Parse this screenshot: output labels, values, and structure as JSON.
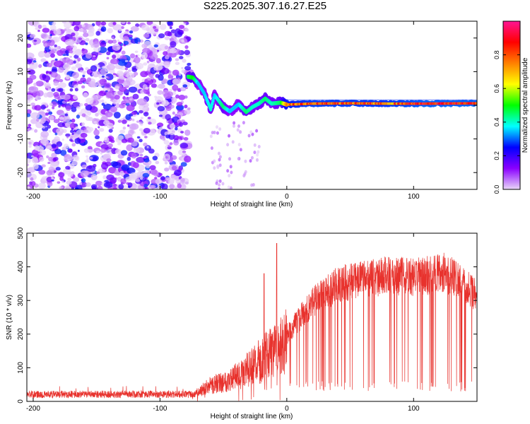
{
  "title": "S225.2025.307.16.27.E25",
  "colors": {
    "snr_line": "#e8322d",
    "axis": "#000000"
  },
  "chart_data": [
    {
      "type": "heatmap",
      "name": "spectrogram",
      "xlabel": "Height of straight line (km)",
      "ylabel": "Frequency (Hz)",
      "xlim": [
        -205,
        150
      ],
      "ylim": [
        -25,
        25
      ],
      "xticks": [
        -200,
        -100,
        0,
        100
      ],
      "yticks": [
        20,
        10,
        0,
        -10,
        -20
      ],
      "colorbar": {
        "label": "Normalized spectral amplitude",
        "ticks": [
          0.0,
          0.2,
          0.4,
          0.6,
          0.8
        ],
        "range": [
          0,
          1
        ],
        "stops": [
          "#e9d7f8",
          "#8a00ff",
          "#0000ff",
          "#00ffff",
          "#00ff00",
          "#ffff00",
          "#ff8000",
          "#ff0000",
          "#ff1493"
        ]
      },
      "trace": {
        "description_points": [
          {
            "x": -78,
            "y": 8.5,
            "a": 0.45
          },
          {
            "x": -74,
            "y": 8.2,
            "a": 0.5
          },
          {
            "x": -70,
            "y": 6.5,
            "a": 0.35
          },
          {
            "x": -65,
            "y": 3.5,
            "a": 0.35
          },
          {
            "x": -60,
            "y": -1.2,
            "a": 0.4
          },
          {
            "x": -57,
            "y": 3.0,
            "a": 0.35
          },
          {
            "x": -50,
            "y": -0.5,
            "a": 0.45
          },
          {
            "x": -45,
            "y": -1.8,
            "a": 0.35
          },
          {
            "x": -38,
            "y": 0.3,
            "a": 0.35
          },
          {
            "x": -32,
            "y": -2.0,
            "a": 0.45
          },
          {
            "x": -27,
            "y": -0.5,
            "a": 0.4
          },
          {
            "x": -22,
            "y": 0.5,
            "a": 0.4
          },
          {
            "x": -17,
            "y": 2.0,
            "a": 0.45
          },
          {
            "x": -12,
            "y": 0.5,
            "a": 0.4
          },
          {
            "x": -5,
            "y": 0.8,
            "a": 0.45
          },
          {
            "x": 0,
            "y": 0.2,
            "a": 0.75
          },
          {
            "x": 20,
            "y": 0.5,
            "a": 0.8
          },
          {
            "x": 50,
            "y": 0.6,
            "a": 0.8
          },
          {
            "x": 80,
            "y": 0.5,
            "a": 0.78
          },
          {
            "x": 110,
            "y": 0.5,
            "a": 0.85
          },
          {
            "x": 150,
            "y": 0.6,
            "a": 0.85
          }
        ]
      }
    },
    {
      "type": "line",
      "name": "snr",
      "xlabel": "Height of straight line (km)",
      "ylabel": "SNR (10 * v/v)",
      "xlim": [
        -205,
        150
      ],
      "ylim": [
        0,
        500
      ],
      "xticks": [
        -200,
        -100,
        0,
        100
      ],
      "yticks": [
        0,
        100,
        200,
        300,
        400,
        500
      ],
      "envelope": [
        {
          "x": -205,
          "y": 20
        },
        {
          "x": -75,
          "y": 20
        },
        {
          "x": -60,
          "y": 60
        },
        {
          "x": -45,
          "y": 80
        },
        {
          "x": -30,
          "y": 120
        },
        {
          "x": -15,
          "y": 170
        },
        {
          "x": -5,
          "y": 200
        },
        {
          "x": 5,
          "y": 250
        },
        {
          "x": 20,
          "y": 330
        },
        {
          "x": 40,
          "y": 390
        },
        {
          "x": 60,
          "y": 410
        },
        {
          "x": 80,
          "y": 420
        },
        {
          "x": 100,
          "y": 415
        },
        {
          "x": 125,
          "y": 430
        },
        {
          "x": 140,
          "y": 390
        },
        {
          "x": 150,
          "y": 350
        }
      ]
    }
  ]
}
